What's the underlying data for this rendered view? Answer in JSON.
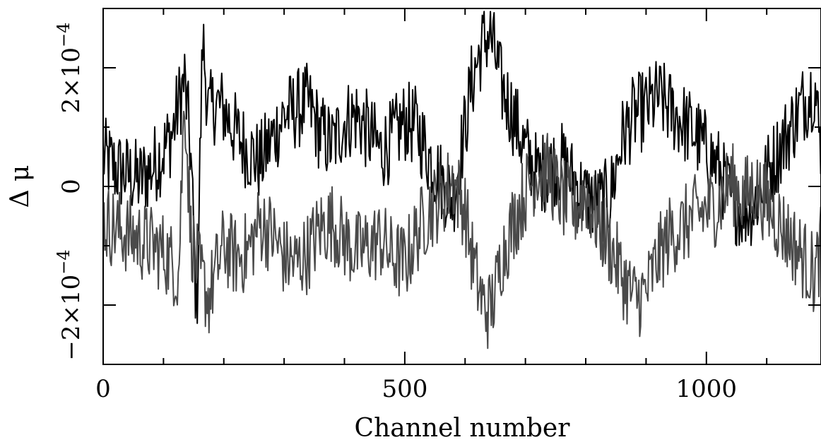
{
  "chart_data": {
    "type": "line",
    "xlabel": "Channel number",
    "ylabel": "Δ μ",
    "xlim": [
      0,
      1190
    ],
    "ylim": [
      -0.0003,
      0.0003
    ],
    "grid": false,
    "x_ticks": [
      {
        "value": 0,
        "label": "0"
      },
      {
        "value": 500,
        "label": "500"
      },
      {
        "value": 1000,
        "label": "1000"
      }
    ],
    "x_minor_ticks": [
      100,
      200,
      300,
      400,
      600,
      700,
      800,
      900,
      1100
    ],
    "y_ticks": [
      {
        "value": 0.0002,
        "mantissa": "2×10",
        "exponent": "−4"
      },
      {
        "value": 0,
        "mantissa": "0",
        "exponent": ""
      },
      {
        "value": -0.0002,
        "mantissa": "−2×10",
        "exponent": "−4"
      }
    ],
    "y_minor_ticks": [
      0.0001,
      -0.0001
    ],
    "colors": {
      "series_dark": "#000000",
      "series_gray": "#4a4a4a",
      "axes": "#000000"
    },
    "series": [
      {
        "color": "series_dark",
        "x": [
          0,
          20,
          40,
          60,
          80,
          100,
          115,
          125,
          135,
          145,
          155,
          165,
          175,
          185,
          200,
          220,
          240,
          260,
          280,
          300,
          320,
          340,
          360,
          380,
          400,
          420,
          440,
          460,
          480,
          500,
          520,
          540,
          560,
          580,
          600,
          610,
          620,
          630,
          640,
          650,
          660,
          680,
          700,
          720,
          740,
          760,
          780,
          800,
          820,
          840,
          860,
          880,
          900,
          920,
          940,
          960,
          980,
          1000,
          1020,
          1040,
          1060,
          1080,
          1100,
          1120,
          1140,
          1160,
          1180,
          1190
        ],
        "y": [
          5e-05,
          3e-05,
          2e-05,
          1e-05,
          3e-05,
          6e-05,
          9e-05,
          0.00014,
          0.00018,
          6e-05,
          -0.00022,
          0.00025,
          0.00012,
          0.00014,
          0.00013,
          9e-05,
          6e-05,
          4e-05,
          8e-05,
          0.00012,
          0.00013,
          0.00014,
          9e-05,
          7e-05,
          0.00011,
          0.00012,
          9e-05,
          6e-05,
          8e-05,
          0.00011,
          0.0001,
          5e-05,
          1e-05,
          -2e-05,
          0.0001,
          0.00017,
          0.00021,
          0.00024,
          0.00026,
          0.00022,
          0.00017,
          0.00012,
          6e-05,
          2e-05,
          3e-05,
          4e-05,
          1e-05,
          -2e-05,
          -3e-05,
          -2e-05,
          8e-05,
          0.00012,
          0.00013,
          0.00015,
          0.00013,
          0.00011,
          9e-05,
          6e-05,
          3e-05,
          -2e-05,
          -4e-05,
          -3e-05,
          2e-05,
          6e-05,
          0.0001,
          0.00014,
          0.00017,
          5e-05
        ]
      },
      {
        "color": "series_gray",
        "x": [
          0,
          20,
          40,
          60,
          80,
          100,
          115,
          125,
          135,
          145,
          155,
          165,
          175,
          185,
          200,
          220,
          240,
          260,
          280,
          300,
          320,
          340,
          360,
          380,
          400,
          420,
          440,
          460,
          480,
          500,
          520,
          540,
          560,
          580,
          600,
          610,
          620,
          630,
          640,
          650,
          660,
          680,
          700,
          720,
          740,
          760,
          780,
          800,
          820,
          840,
          860,
          880,
          900,
          920,
          940,
          960,
          980,
          1000,
          1020,
          1040,
          1060,
          1080,
          1100,
          1120,
          1140,
          1160,
          1180,
          1190
        ],
        "y": [
          -6e-05,
          -7e-05,
          -8e-05,
          -9e-05,
          -0.0001,
          -0.00011,
          -0.00013,
          -0.00015,
          0.00016,
          -8e-05,
          -0.00013,
          -0.00016,
          -0.00019,
          -0.00015,
          -0.0001,
          -0.00012,
          -0.00011,
          -6e-05,
          -8e-05,
          -0.00012,
          -0.00013,
          -0.00011,
          -7e-05,
          -6e-05,
          -9e-05,
          -0.00011,
          -0.0001,
          -9e-05,
          -0.00012,
          -0.00013,
          -8e-05,
          -4e-05,
          -2e-05,
          1e-05,
          -4e-05,
          -0.00011,
          -0.00016,
          -0.0002,
          -0.00021,
          -0.00018,
          -0.00012,
          -6e-05,
          -1e-05,
          3e-05,
          2e-05,
          -2e-05,
          -4e-05,
          -1e-05,
          -6e-05,
          -0.0001,
          -0.00015,
          -0.00019,
          -0.00018,
          -0.00012,
          -8e-05,
          -7e-05,
          -5e-05,
          -4e-05,
          -3e-05,
          1e-05,
          -2e-05,
          0.0,
          -3e-05,
          -6e-05,
          -9e-05,
          -0.00012,
          -0.00015,
          -0.0001
        ]
      }
    ]
  }
}
